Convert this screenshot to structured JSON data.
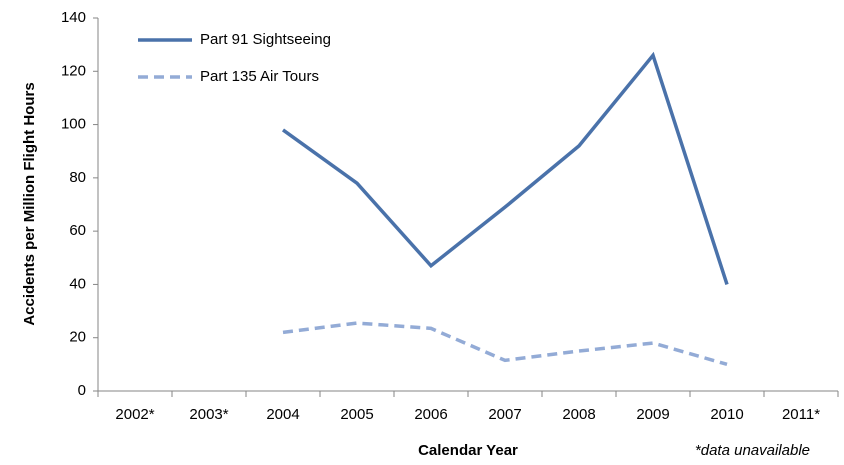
{
  "chart_data": {
    "type": "line",
    "categories": [
      "2002*",
      "2003*",
      "2004",
      "2005",
      "2006",
      "2007",
      "2008",
      "2009",
      "2010",
      "2011*"
    ],
    "series": [
      {
        "name": "Part 91 Sightseeing",
        "color": "#4a72aa",
        "dashed": false,
        "values": [
          null,
          null,
          98,
          78,
          47,
          69,
          92,
          126,
          40,
          null
        ]
      },
      {
        "name": "Part 135 Air Tours",
        "color": "#93abd6",
        "dashed": true,
        "values": [
          null,
          null,
          22,
          25.5,
          23.5,
          11.5,
          15,
          18,
          10,
          null
        ]
      }
    ],
    "ylim": [
      0,
      140
    ],
    "yticks": [
      0,
      20,
      40,
      60,
      80,
      100,
      120,
      140
    ],
    "xlabel": "Calendar Year",
    "ylabel": "Accidents per Million Flight Hours",
    "annotation": "*data unavailable",
    "legend": "upper left",
    "grid": false
  }
}
